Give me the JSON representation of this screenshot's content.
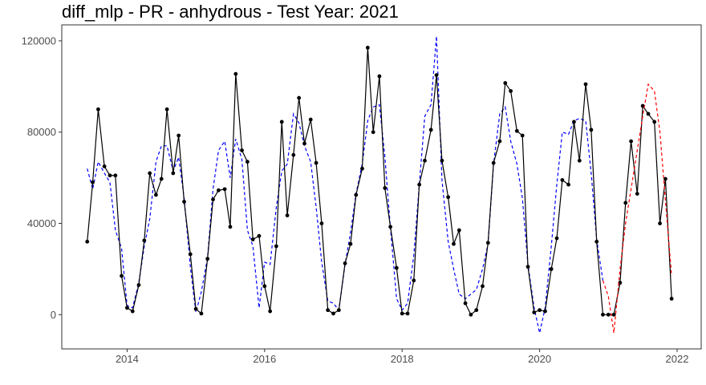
{
  "chart_data": {
    "type": "line",
    "title": "diff_mlp - PR - anhydrous - Test Year: 2021",
    "xlabel": "",
    "ylabel": "",
    "xlim": [
      2013.05,
      2022.35
    ],
    "ylim": [
      -15000,
      127000
    ],
    "grid": false,
    "x_ticks": [
      2014,
      2016,
      2018,
      2020,
      2022
    ],
    "x_tick_labels": [
      "2014",
      "2016",
      "2018",
      "2020",
      "2022"
    ],
    "y_ticks": [
      0,
      40000,
      80000,
      120000
    ],
    "y_tick_labels": [
      "0",
      "40000",
      "80000",
      "120000"
    ],
    "series": [
      {
        "kind": "actual",
        "color": "#000000",
        "dash": "solid",
        "markers": true,
        "x": [
          2013.42,
          2013.5,
          2013.58,
          2013.67,
          2013.75,
          2013.83,
          2013.92,
          2014.0,
          2014.08,
          2014.17,
          2014.25,
          2014.33,
          2014.42,
          2014.5,
          2014.58,
          2014.67,
          2014.75,
          2014.83,
          2014.92,
          2015.0,
          2015.08,
          2015.17,
          2015.25,
          2015.33,
          2015.42,
          2015.5,
          2015.58,
          2015.67,
          2015.75,
          2015.83,
          2015.92,
          2016.0,
          2016.08,
          2016.17,
          2016.25,
          2016.33,
          2016.42,
          2016.5,
          2016.58,
          2016.67,
          2016.75,
          2016.83,
          2016.92,
          2017.0,
          2017.08,
          2017.17,
          2017.25,
          2017.33,
          2017.42,
          2017.5,
          2017.58,
          2017.67,
          2017.75,
          2017.83,
          2017.92,
          2018.0,
          2018.08,
          2018.17,
          2018.25,
          2018.33,
          2018.42,
          2018.5,
          2018.58,
          2018.67,
          2018.75,
          2018.83,
          2018.92,
          2019.0,
          2019.08,
          2019.17,
          2019.25,
          2019.33,
          2019.42,
          2019.5,
          2019.58,
          2019.67,
          2019.75,
          2019.83,
          2019.92,
          2020.0,
          2020.08,
          2020.17,
          2020.25,
          2020.33,
          2020.42,
          2020.5,
          2020.58,
          2020.67,
          2020.75,
          2020.83,
          2020.92,
          2021.0,
          2021.08,
          2021.17,
          2021.25,
          2021.33,
          2021.42,
          2021.5,
          2021.58,
          2021.67,
          2021.75,
          2021.83,
          2021.92
        ],
        "y": [
          32000,
          58000,
          90000,
          65000,
          61000,
          61000,
          17000,
          3000,
          1500,
          13000,
          32500,
          62000,
          52500,
          59500,
          90000,
          62000,
          78500,
          49500,
          26500,
          2500,
          500,
          24500,
          50500,
          54500,
          55000,
          38500,
          105500,
          72000,
          67000,
          33000,
          34500,
          12500,
          1500,
          30000,
          84500,
          43500,
          70000,
          95000,
          75000,
          85500,
          66500,
          40000,
          2000,
          500,
          2000,
          22500,
          31000,
          52500,
          64000,
          117000,
          80000,
          104500,
          55500,
          38500,
          20500,
          500,
          500,
          15000,
          57000,
          67500,
          81000,
          105000,
          67500,
          51500,
          31000,
          37000,
          5000,
          0,
          2000,
          12500,
          31500,
          66500,
          76000,
          101500,
          98000,
          80500,
          78500,
          21000,
          1000,
          2000,
          1500,
          20000,
          33500,
          59000,
          57000,
          84500,
          67500,
          101000,
          81000,
          32000,
          0,
          0,
          0,
          14000,
          49000,
          76000,
          53000,
          91500,
          88000,
          84500,
          40000,
          59500,
          7000
        ]
      },
      {
        "kind": "fitted",
        "color": "#0000ff",
        "dash": "dashed",
        "markers": false,
        "x": [
          2013.42,
          2013.5,
          2013.58,
          2013.67,
          2013.75,
          2013.83,
          2013.92,
          2014.0,
          2014.08,
          2014.17,
          2014.25,
          2014.33,
          2014.42,
          2014.5,
          2014.58,
          2014.67,
          2014.75,
          2014.83,
          2014.92,
          2015.0,
          2015.08,
          2015.17,
          2015.25,
          2015.33,
          2015.42,
          2015.5,
          2015.58,
          2015.67,
          2015.75,
          2015.83,
          2015.92,
          2016.0,
          2016.08,
          2016.17,
          2016.25,
          2016.33,
          2016.42,
          2016.5,
          2016.58,
          2016.67,
          2016.75,
          2016.83,
          2016.92,
          2017.0,
          2017.08,
          2017.17,
          2017.25,
          2017.33,
          2017.42,
          2017.5,
          2017.58,
          2017.67,
          2017.75,
          2017.83,
          2017.92,
          2018.0,
          2018.08,
          2018.17,
          2018.25,
          2018.33,
          2018.42,
          2018.5,
          2018.58,
          2018.67,
          2018.75,
          2018.83,
          2018.92,
          2019.0,
          2019.08,
          2019.17,
          2019.25,
          2019.33,
          2019.42,
          2019.5,
          2019.58,
          2019.67,
          2019.75,
          2019.83,
          2019.92,
          2020.0,
          2020.08,
          2020.17,
          2020.25,
          2020.33,
          2020.42,
          2020.5,
          2020.58,
          2020.67,
          2020.75,
          2020.83,
          2020.92
        ],
        "y": [
          64000,
          55000,
          67000,
          62000,
          58000,
          37000,
          29000,
          4000,
          3000,
          14000,
          30000,
          42000,
          67000,
          74000,
          74000,
          63000,
          69000,
          51000,
          21000,
          1000,
          10000,
          25000,
          55000,
          72000,
          76000,
          60000,
          77000,
          68000,
          37000,
          30000,
          3000,
          23000,
          22000,
          47000,
          63000,
          66000,
          88000,
          84000,
          74000,
          67000,
          47000,
          23000,
          6000,
          5000,
          2000,
          22000,
          36000,
          53000,
          66000,
          85000,
          91000,
          92000,
          69000,
          38000,
          7000,
          2000,
          5000,
          26000,
          57000,
          87000,
          92000,
          122000,
          59000,
          32000,
          20000,
          9000,
          7000,
          9000,
          11000,
          20000,
          31000,
          66000,
          88000,
          91000,
          76000,
          66000,
          51000,
          22000,
          3000,
          -8000,
          3000,
          30000,
          57000,
          80000,
          79000,
          85000,
          86000,
          85000,
          62000,
          33000,
          15000
        ]
      },
      {
        "kind": "forecast",
        "color": "#ff0000",
        "dash": "dashed",
        "markers": false,
        "x": [
          2020.92,
          2021.0,
          2021.08,
          2021.17,
          2021.25,
          2021.33,
          2021.42,
          2021.5,
          2021.58,
          2021.67,
          2021.75,
          2021.83,
          2021.92
        ],
        "y": [
          15000,
          8000,
          -8000,
          20000,
          40000,
          55000,
          72000,
          87000,
          101000,
          98000,
          80000,
          50000,
          17000
        ]
      }
    ]
  }
}
